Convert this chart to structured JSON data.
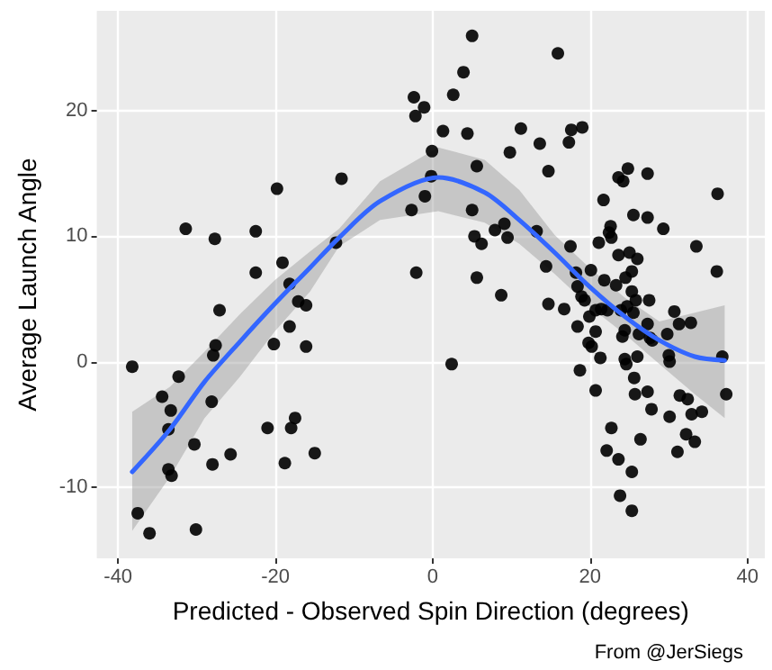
{
  "chart_data": {
    "type": "scatter",
    "xlabel": "Predicted - Observed Spin Direction (degrees)",
    "ylabel": "Average Launch Angle",
    "annotations": [
      "From @JerSiegs"
    ],
    "xlim": [
      -42.7,
      42.2
    ],
    "ylim": [
      -15.7,
      28
    ],
    "xticks": [
      -40,
      -20,
      0,
      20,
      40
    ],
    "yticks": [
      -10,
      0,
      10,
      20
    ],
    "grid": true,
    "series": [
      {
        "color": "#000000",
        "marker": "circle",
        "x": [
          -38.2,
          -37.5,
          -36,
          -30.1,
          -34.4,
          -33.3,
          -32.3,
          -33.6,
          -33.6,
          -33.2,
          -31.4,
          -30.3,
          -28.1,
          -27.9,
          -27.6,
          -27.1,
          -27.7,
          -28,
          -25.7,
          -22.5,
          -22.5,
          -21,
          -20.2,
          -19.8,
          -19.1,
          -18.2,
          -18.2,
          -18.8,
          -18,
          -17.5,
          -17.1,
          -16.1,
          -16.1,
          -15,
          -12.3,
          -11.6,
          -2.4,
          -2.2,
          -1.1,
          -0.1,
          -0.2,
          -1,
          -2.7,
          -2.1,
          5,
          3.9,
          2.6,
          1.3,
          4.4,
          5.6,
          5,
          5.3,
          6.2,
          5.6,
          2.4,
          7.9,
          9.1,
          9.5,
          8.7,
          9.8,
          11.2,
          13.6,
          14.7,
          15.9,
          13.2,
          14.4,
          14.7,
          16.7,
          17.3,
          17.6,
          19,
          17.5,
          18.2,
          18.4,
          18.9,
          19.3,
          18.4,
          19.9,
          20.7,
          20.1,
          19.8,
          20.2,
          20.7,
          21.3,
          18.7,
          20.7,
          21.1,
          21.8,
          21.7,
          22.6,
          22.4,
          22.7,
          22.2,
          21.4,
          23.3,
          23.6,
          23.6,
          24.2,
          24.8,
          24.5,
          25.3,
          25,
          26,
          25.5,
          27.3,
          27.3,
          29.3,
          25.3,
          25.8,
          27.5,
          24.7,
          23.9,
          25.5,
          24.4,
          24.1,
          26.2,
          27.3,
          27.6,
          27.9,
          24.4,
          24.6,
          26,
          25.6,
          25.7,
          27.3,
          27.8,
          26.4,
          22.7,
          22.1,
          23.6,
          25.3,
          23.8,
          25.3,
          29.8,
          30,
          30.1,
          30.7,
          31.3,
          32.8,
          30.1,
          31.4,
          32.4,
          32.9,
          34.2,
          31.1,
          32.2,
          33.3,
          33.5,
          36.1,
          36.2,
          36.8,
          37.3
        ],
        "values": [
          -0.4,
          -12.1,
          -13.7,
          -13.4,
          -2.8,
          -3.9,
          -1.2,
          -5.4,
          -8.6,
          -9.1,
          10.6,
          -6.6,
          -3.2,
          0.5,
          1.3,
          4.1,
          9.8,
          -8.2,
          -7.4,
          10.4,
          7.1,
          -5.3,
          1.4,
          13.8,
          7.9,
          6.2,
          2.8,
          -8.1,
          -5.3,
          -4.5,
          4.8,
          4.5,
          1.2,
          -7.3,
          9.5,
          14.6,
          21.1,
          19.6,
          20.3,
          16.8,
          14.8,
          13.2,
          12.1,
          7.1,
          26,
          23.1,
          21.3,
          18.4,
          18.2,
          15.6,
          12.1,
          10,
          9.4,
          6.7,
          -0.2,
          10.5,
          11,
          9.9,
          5.3,
          16.7,
          18.6,
          17.4,
          15.2,
          24.6,
          10.4,
          7.6,
          4.6,
          4.2,
          17.5,
          18.5,
          18.7,
          9.2,
          7.1,
          6,
          5.2,
          4.9,
          2.8,
          3.6,
          4.1,
          7.3,
          1.5,
          1.2,
          2.4,
          0.3,
          -0.7,
          -2.3,
          9.5,
          6.5,
          12.9,
          10.8,
          10.3,
          9.9,
          4.1,
          4.2,
          6.1,
          8.5,
          14.7,
          14.4,
          15.4,
          6.7,
          7.2,
          8.7,
          8.2,
          11.7,
          15,
          11.5,
          10.6,
          5.6,
          4.9,
          4.9,
          4.4,
          4.1,
          3.9,
          2.5,
          2,
          2.2,
          3,
          1.9,
          1.7,
          0.2,
          -0.2,
          0.4,
          -1.3,
          -2.6,
          -2.4,
          -3.8,
          -6.2,
          -5.3,
          -7.1,
          -7.8,
          -8.8,
          -10.7,
          -11.9,
          2.2,
          0.5,
          0,
          4,
          3,
          3.1,
          -4.4,
          -2.7,
          -3,
          -4.2,
          -4,
          -7.2,
          -5.8,
          -6.4,
          9.2,
          7.2,
          13.4,
          0.4,
          -2.6
        ]
      },
      {
        "type": "line",
        "color": "#3366ff",
        "marker": "none",
        "line_style": "solid",
        "x": [
          -38.2,
          -33.4,
          -29,
          -24.5,
          -20.1,
          -15.6,
          -11.9,
          -6.7,
          0.7,
          6.6,
          11,
          15.5,
          19.9,
          24.4,
          28.8,
          33.3,
          37.1
        ],
        "values": [
          -8.8,
          -5.4,
          -1.6,
          1.6,
          4.6,
          7.5,
          9.9,
          12.8,
          14.7,
          13.5,
          11.3,
          8.7,
          6,
          3.6,
          1.7,
          0.4,
          0.1
        ],
        "lower": [
          -13.5,
          -9.2,
          -4.5,
          -1.2,
          2.4,
          5.6,
          9.2,
          11.3,
          12,
          11.1,
          9.4,
          7,
          4.4,
          2.2,
          -0.2,
          -2.6,
          -4.5
        ],
        "upper": [
          -4,
          -2,
          0.8,
          3.8,
          6.5,
          8.8,
          10.6,
          14.4,
          17.1,
          16.1,
          13.7,
          10.1,
          7.5,
          5.1,
          3.2,
          3.9,
          4.5
        ]
      }
    ]
  }
}
